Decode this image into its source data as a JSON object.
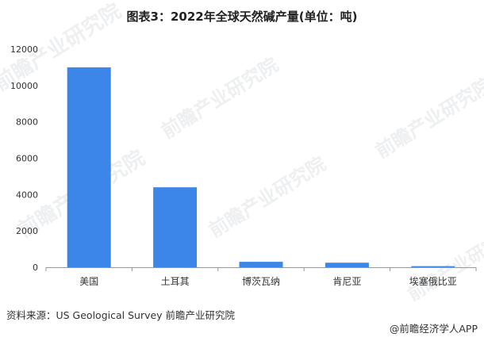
{
  "header": {
    "title": "图表3：2022年全球天然碱产量(单位：吨)"
  },
  "footer": {
    "source": "资料来源：US Geological Survey 前瞻产业研究院",
    "brand": "@前瞻经济学人APP"
  },
  "watermark": {
    "text": "前瞻产业研究院"
  },
  "colors": {
    "bar": "#3b86e8",
    "axis": "#999999"
  },
  "chart_data": {
    "type": "bar",
    "title": "图表3：2022年全球天然碱产量(单位：吨)",
    "categories": [
      "美国",
      "土耳其",
      "博茨瓦纳",
      "肯尼亚",
      "埃塞俄比亚"
    ],
    "values": [
      11000,
      4400,
      300,
      250,
      60
    ],
    "ylim": [
      0,
      12000
    ],
    "yticks": [
      0,
      2000,
      4000,
      6000,
      8000,
      10000,
      12000
    ],
    "xlabel": "",
    "ylabel": "",
    "grid": false,
    "legend": "none"
  }
}
